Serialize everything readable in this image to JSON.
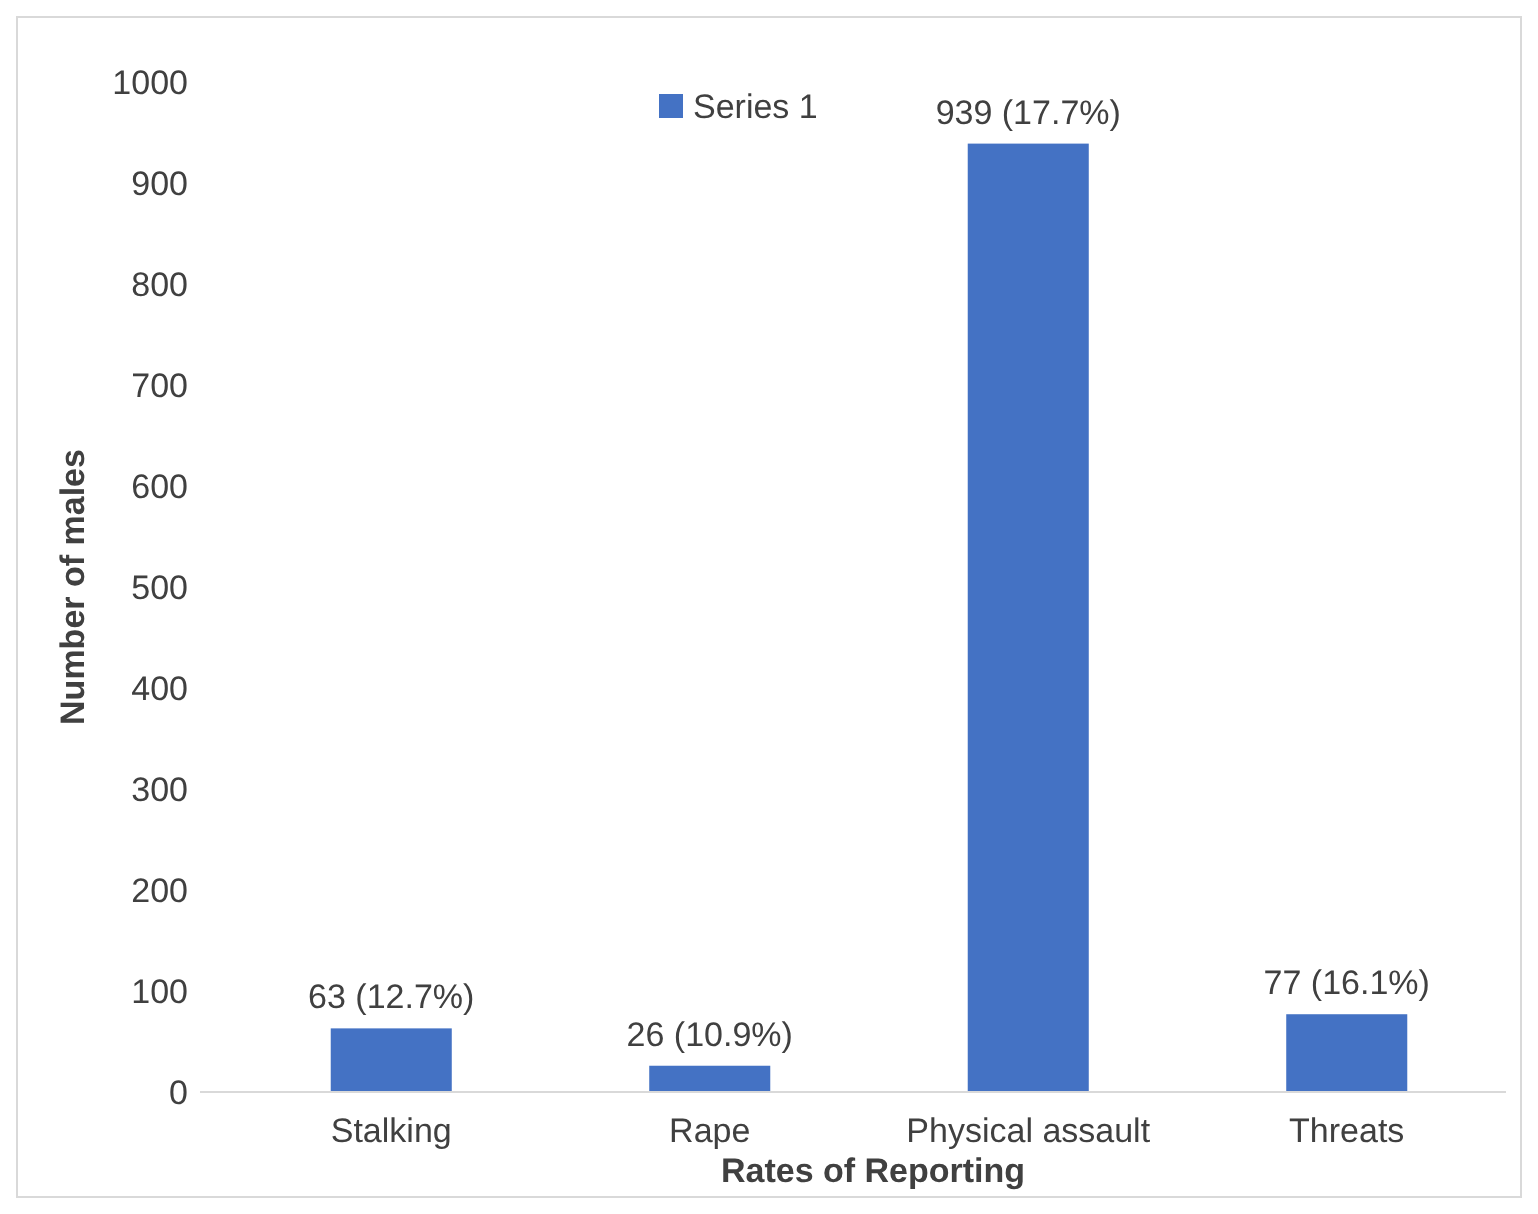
{
  "chart_data": {
    "type": "bar",
    "xlabel": "Rates of Reporting",
    "ylabel": "Number of males",
    "categories": [
      "Stalking",
      "Rape",
      "Physical assault",
      "Threats"
    ],
    "series": [
      {
        "name": "Series 1",
        "color": "#4472c4",
        "values": [
          63,
          26,
          939,
          77
        ],
        "value_labels": [
          "63 (12.7%)",
          "26 (10.9%)",
          "939 (17.7%)",
          "77 (16.1%)"
        ]
      }
    ],
    "ylim": [
      0,
      1000
    ],
    "yticks": [
      0,
      100,
      200,
      300,
      400,
      500,
      600,
      700,
      800,
      900,
      1000
    ],
    "grid": false,
    "legend": "top"
  }
}
